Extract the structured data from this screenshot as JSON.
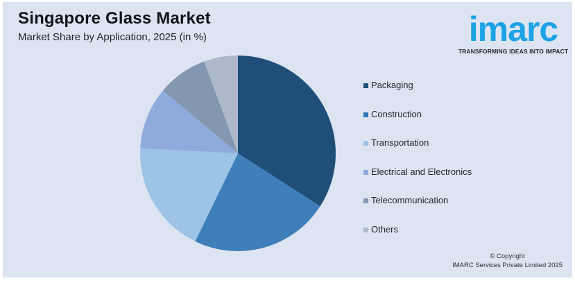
{
  "header": {
    "title": "Singapore Glass Market",
    "subtitle": "Market Share by Application, 2025 (in %)"
  },
  "logo": {
    "wordmark": "imarc",
    "tagline": "TRANSFORMING IDEAS INTO IMPACT",
    "color": "#1ba3e6"
  },
  "footer": {
    "copyright_line1": "© Copyright",
    "copyright_line2": "IMARC Services Private Limited 2025"
  },
  "legend": {
    "items": [
      {
        "label": "Packaging",
        "color": "#1f4e79"
      },
      {
        "label": "Construction",
        "color": "#2e75b6"
      },
      {
        "label": "Transportation",
        "color": "#9dc3e6"
      },
      {
        "label": "Electrical and Electronics",
        "color": "#8faadc"
      },
      {
        "label": "Telecommunication",
        "color": "#8497b0"
      },
      {
        "label": "Others",
        "color": "#adb9ca"
      }
    ]
  },
  "chart_data": {
    "type": "pie",
    "title": "Singapore Glass Market",
    "subtitle": "Market Share by Application, 2025 (in %)",
    "categories": [
      "Packaging",
      "Construction",
      "Transportation",
      "Electrical and Electronics",
      "Telecommunication",
      "Others"
    ],
    "values": [
      34.1,
      23.1,
      18.6,
      10.3,
      8.3,
      5.6
    ],
    "colors": [
      "#1f4e79",
      "#3f7fb9",
      "#9dc3e6",
      "#8faadc",
      "#8497b0",
      "#adb9ca"
    ],
    "start_angle_deg": 0,
    "direction": "clockwise",
    "legend_position": "right",
    "data_labels": false
  }
}
